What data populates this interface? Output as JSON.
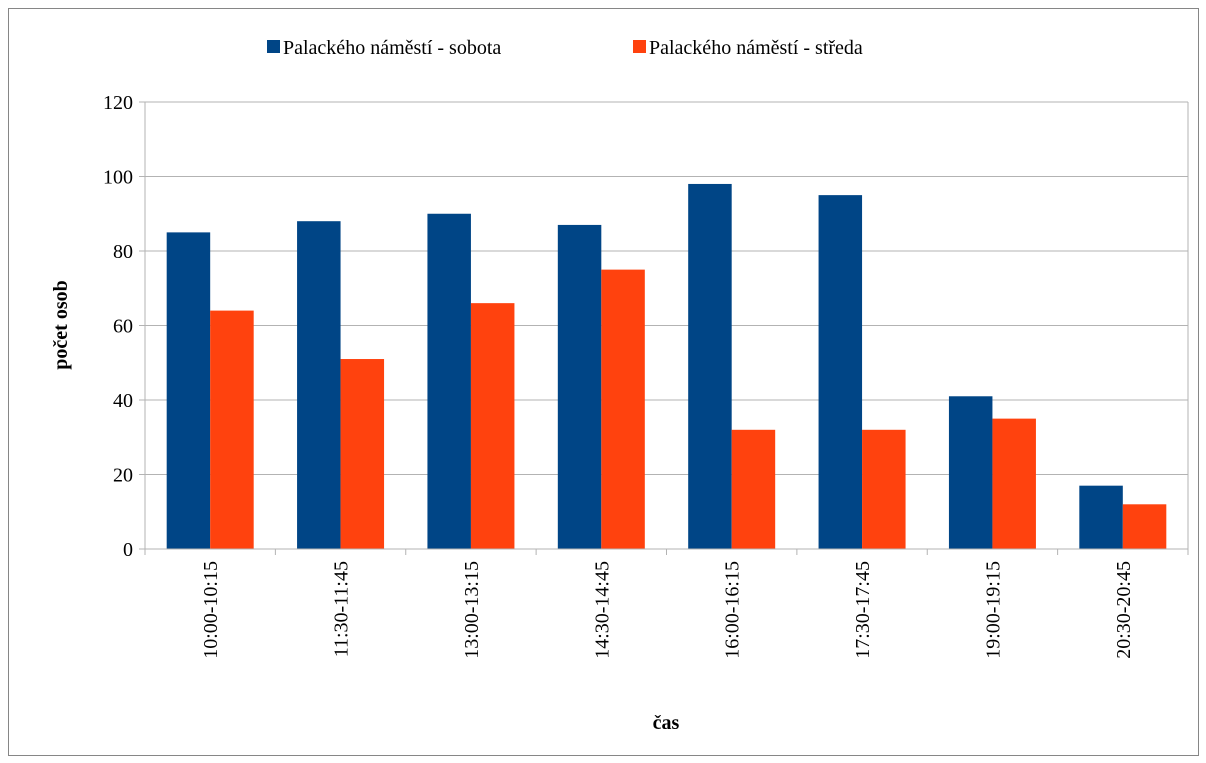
{
  "chart_data": {
    "type": "bar",
    "xlabel": "čas",
    "ylabel": "počet osob",
    "ylim": [
      0,
      120
    ],
    "yticks": [
      0,
      20,
      40,
      60,
      80,
      100,
      120
    ],
    "grid": true,
    "legend_position": "top",
    "categories": [
      "10:00-10:15",
      "11:30-11:45",
      "13:00-13:15",
      "14:30-14:45",
      "16:00-16:15",
      "17:30-17:45",
      "19:00-19:15",
      "20:30-20:45"
    ],
    "series": [
      {
        "name": "Palackého náměstí - sobota",
        "color": "#004586",
        "values": [
          85,
          88,
          90,
          87,
          98,
          95,
          41,
          17
        ]
      },
      {
        "name": "Palackého náměstí - středa",
        "color": "#ff420e",
        "values": [
          64,
          51,
          66,
          75,
          32,
          32,
          35,
          12
        ]
      }
    ]
  }
}
